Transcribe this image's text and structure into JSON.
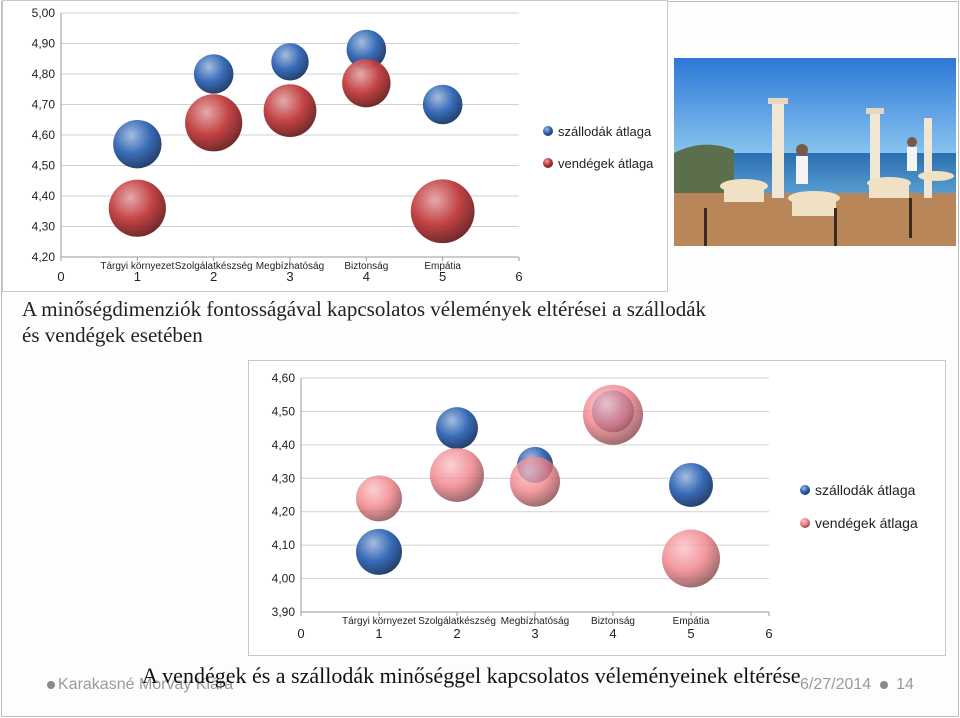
{
  "chart_data": [
    {
      "type": "scatter",
      "title": "",
      "xlabel": "",
      "ylabel": "",
      "xlim": [
        0,
        6
      ],
      "ylim": [
        4.2,
        5.0
      ],
      "y_ticks": [
        "4,20",
        "4,30",
        "4,40",
        "4,50",
        "4,60",
        "4,70",
        "4,80",
        "4,90",
        "5,00"
      ],
      "x_ticks": [
        "0",
        "1",
        "2",
        "3",
        "4",
        "5",
        "6"
      ],
      "categories": [
        "Tárgyi környezet",
        "Szolgálatkészség",
        "Megbízhatóság",
        "Biztonság",
        "Empátia"
      ],
      "grid": true,
      "legend": "right",
      "series": [
        {
          "name": "szállodák átlaga",
          "color": "#2e64b4",
          "x": [
            1,
            2,
            3,
            4,
            5
          ],
          "y": [
            4.57,
            4.8,
            4.84,
            4.88,
            4.7
          ],
          "size": [
            1.1,
            0.9,
            0.85,
            0.9,
            0.9
          ]
        },
        {
          "name": "vendégek átlaga",
          "color": "#c0393b",
          "x": [
            1,
            2,
            3,
            4,
            5
          ],
          "y": [
            4.36,
            4.64,
            4.68,
            4.77,
            4.35
          ],
          "size": [
            1.3,
            1.3,
            1.2,
            1.1,
            1.45
          ]
        }
      ]
    },
    {
      "type": "scatter",
      "title": "",
      "xlabel": "",
      "ylabel": "",
      "xlim": [
        0,
        6
      ],
      "ylim": [
        3.9,
        4.6
      ],
      "y_ticks": [
        "3,90",
        "4,00",
        "4,10",
        "4,20",
        "4,30",
        "4,40",
        "4,50",
        "4,60"
      ],
      "x_ticks": [
        "0",
        "1",
        "2",
        "3",
        "4",
        "5",
        "6"
      ],
      "categories": [
        "Tárgyi környezet",
        "Szolgálatkészség",
        "Megbízhatóság",
        "Biztonság",
        "Empátia"
      ],
      "grid": true,
      "legend": "right",
      "series": [
        {
          "name": "szállodák átlaga",
          "color": "#2e64b4",
          "x": [
            1,
            2,
            3,
            4,
            5
          ],
          "y": [
            4.08,
            4.45,
            4.34,
            4.5,
            4.28
          ],
          "size": [
            1.15,
            1.05,
            0.9,
            1.05,
            1.1
          ]
        },
        {
          "name": "vendégek átlaga",
          "color": "#f07f86",
          "x": [
            1,
            2,
            3,
            4,
            5
          ],
          "y": [
            4.24,
            4.31,
            4.29,
            4.49,
            4.06
          ],
          "size": [
            1.15,
            1.35,
            1.25,
            1.5,
            1.45
          ]
        }
      ]
    }
  ],
  "caption_top": "A minőségdimenziók fontosságával kapcsolatos vélemények eltérései a szállodák és vendégek esetében",
  "caption_bottom": "A vendégek és a szállodák minőséggel kapcsolatos véleményeinek eltérése",
  "footer": {
    "author": "Karakasné Morvay Klára",
    "date": "6/27/2014",
    "page": "14"
  },
  "photo": {
    "kind": "terrace-restaurant-sea-view"
  }
}
